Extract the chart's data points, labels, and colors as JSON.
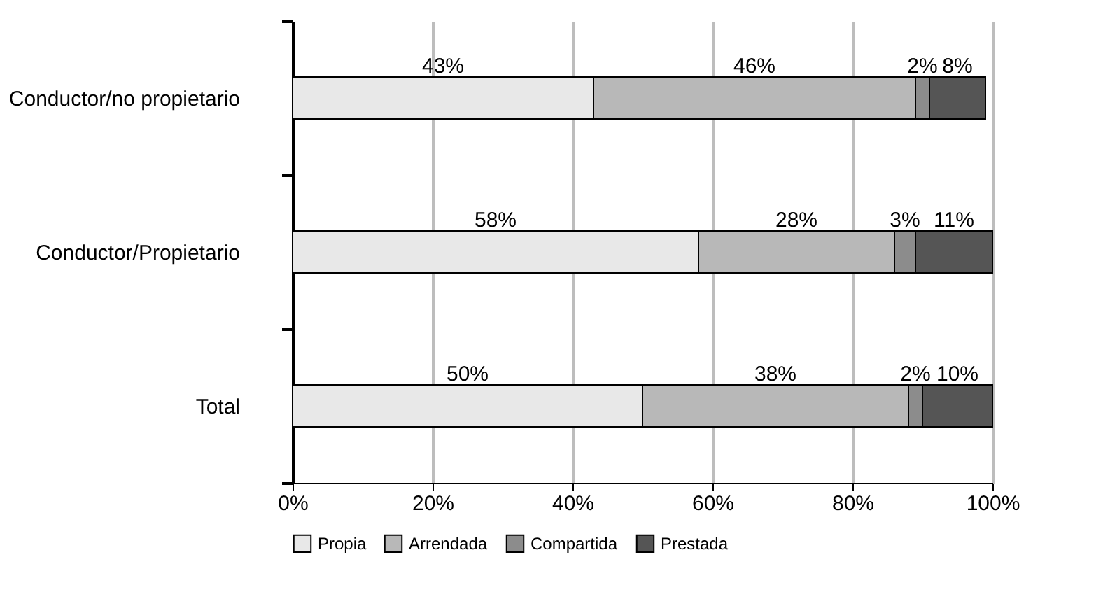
{
  "chart_data": {
    "type": "bar",
    "orientation": "horizontal",
    "stacked": true,
    "categories": [
      "Conductor/no propietario",
      "Conductor/Propietario",
      "Total"
    ],
    "series": [
      {
        "name": "Propia",
        "color": "#e8e8e8",
        "values": [
          43,
          58,
          50
        ],
        "value_labels": [
          "43%",
          "58%",
          "50%"
        ]
      },
      {
        "name": "Arrendada",
        "color": "#b8b8b8",
        "values": [
          46,
          28,
          38
        ],
        "value_labels": [
          "46%",
          "28%",
          "38%"
        ]
      },
      {
        "name": "Compartida",
        "color": "#8c8c8c",
        "values": [
          2,
          3,
          2
        ],
        "value_labels": [
          "2%",
          "3%",
          "2%"
        ]
      },
      {
        "name": "Prestada",
        "color": "#555555",
        "values": [
          8,
          11,
          10
        ],
        "value_labels": [
          "8%",
          "11%",
          "10%"
        ]
      }
    ],
    "xlim": [
      0,
      100
    ],
    "xticks": [
      {
        "value": 0,
        "label": "0%"
      },
      {
        "value": 20,
        "label": "20%"
      },
      {
        "value": 40,
        "label": "40%"
      },
      {
        "value": 60,
        "label": "60%"
      },
      {
        "value": 80,
        "label": "80%"
      },
      {
        "value": 100,
        "label": "100%"
      }
    ],
    "grid": "x",
    "legend": "bottom"
  }
}
